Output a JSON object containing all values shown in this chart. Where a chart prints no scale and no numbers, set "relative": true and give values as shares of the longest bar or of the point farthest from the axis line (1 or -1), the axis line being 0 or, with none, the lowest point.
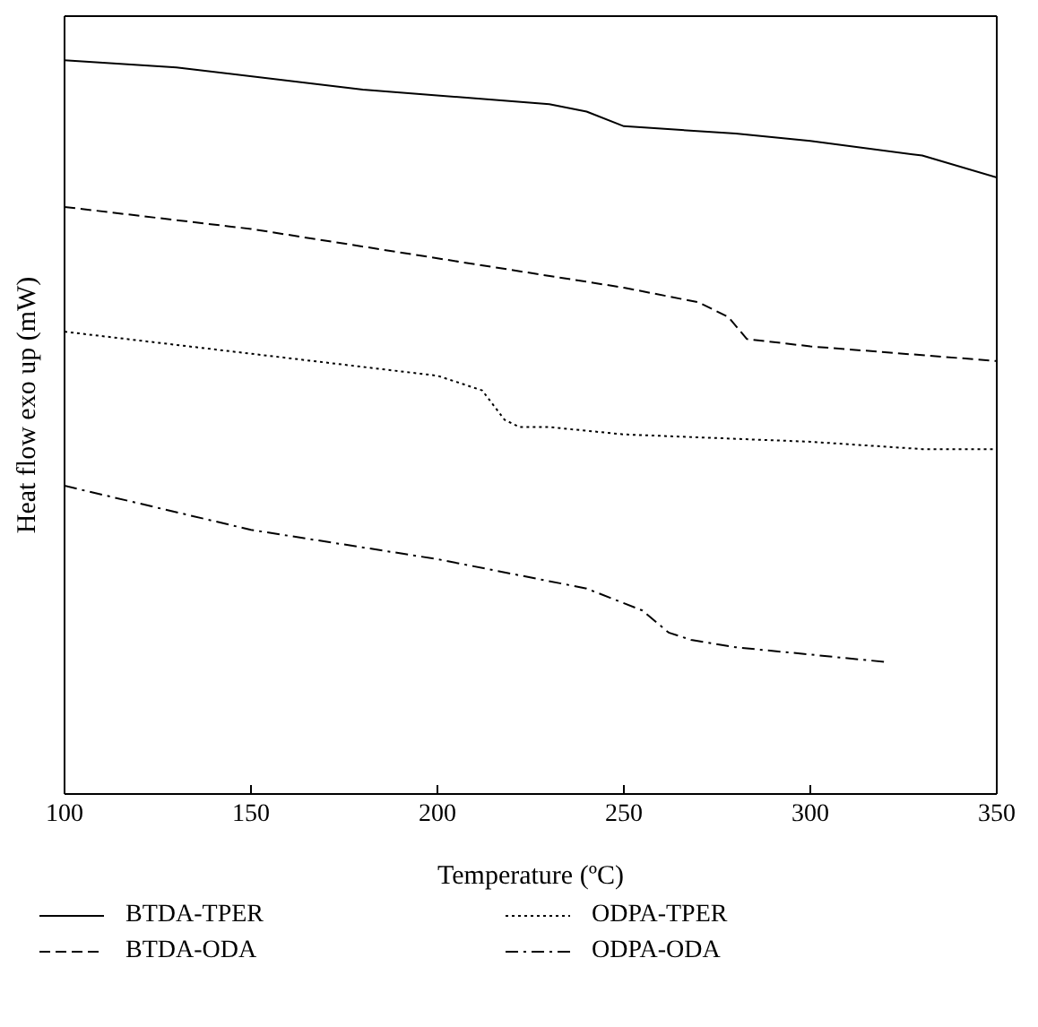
{
  "chart_data": {
    "type": "line",
    "relative": true,
    "xlabel": "Temperature (ºC)",
    "ylabel": "Heat flow exo up (mW)",
    "xlim": [
      100,
      350
    ],
    "xticks": [
      100,
      150,
      200,
      250,
      300,
      350
    ],
    "legend": "bottom",
    "marker": "none",
    "series": [
      {
        "name": "BTDA-TPER",
        "color": "#000000",
        "line_style": "solid",
        "x": [
          100,
          130,
          180,
          230,
          240,
          250,
          280,
          300,
          330,
          350
        ],
        "values": [
          1.0,
          0.99,
          0.96,
          0.94,
          0.93,
          0.91,
          0.9,
          0.89,
          0.87,
          0.84
        ]
      },
      {
        "name": "BTDA-ODA",
        "color": "#000000",
        "line_style": "dashed",
        "x": [
          100,
          150,
          200,
          250,
          270,
          278,
          283,
          300,
          350
        ],
        "values": [
          0.8,
          0.77,
          0.73,
          0.69,
          0.67,
          0.65,
          0.62,
          0.61,
          0.59
        ]
      },
      {
        "name": "ODPA-TPER",
        "color": "#000000",
        "line_style": "dotted",
        "x": [
          100,
          150,
          200,
          212,
          218,
          222,
          230,
          250,
          300,
          330,
          350
        ],
        "values": [
          0.63,
          0.6,
          0.57,
          0.55,
          0.51,
          0.5,
          0.5,
          0.49,
          0.48,
          0.47,
          0.47
        ]
      },
      {
        "name": "ODPA-ODA",
        "color": "#000000",
        "line_style": "dashdot",
        "x": [
          100,
          150,
          200,
          240,
          255,
          262,
          268,
          280,
          300,
          320
        ],
        "values": [
          0.42,
          0.36,
          0.32,
          0.28,
          0.25,
          0.22,
          0.21,
          0.2,
          0.19,
          0.18
        ]
      }
    ]
  }
}
